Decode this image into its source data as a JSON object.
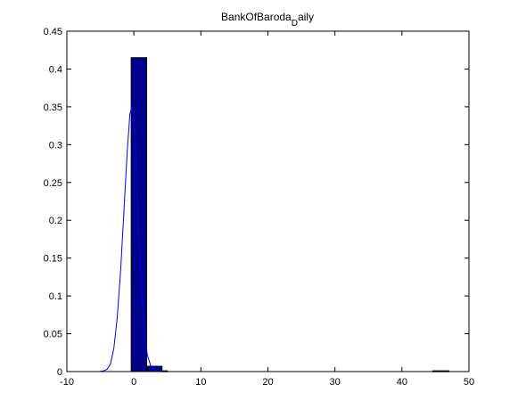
{
  "chart_data": {
    "type": "bar",
    "title_main": "BankOfBaroda",
    "title_sub": "D",
    "title_tail": "aily",
    "xlabel": "",
    "ylabel": "",
    "xlim": [
      -10,
      50
    ],
    "ylim": [
      0,
      0.45
    ],
    "x_ticks": [
      -10,
      0,
      10,
      20,
      30,
      40,
      50
    ],
    "x_tick_labels": [
      "-10",
      "0",
      "10",
      "20",
      "30",
      "40",
      "50"
    ],
    "y_ticks": [
      0,
      0.05,
      0.1,
      0.15,
      0.2,
      0.25,
      0.3,
      0.35,
      0.4,
      0.45
    ],
    "y_tick_labels": [
      "0",
      "0.05",
      "0.1",
      "0.15",
      "0.2",
      "0.25",
      "0.3",
      "0.35",
      "0.4",
      "0.45"
    ],
    "grid": false,
    "bar_color": "#00008b",
    "line_color": "#0000ff",
    "bars": [
      {
        "x0": -0.4,
        "x1": 1.9,
        "value": 0.415
      },
      {
        "x0": 1.9,
        "x1": 4.2,
        "value": 0.007
      },
      {
        "x0": 4.2,
        "x1": 5.0,
        "value": 0.001
      },
      {
        "x0": 44.6,
        "x1": 47.0,
        "value": 0.001
      }
    ],
    "density_curve": {
      "x": [
        -5,
        -4.5,
        -4,
        -3.5,
        -3,
        -2.5,
        -2,
        -1.5,
        -1,
        -0.6,
        -0.3,
        0,
        0.3,
        0.6,
        1,
        1.5,
        2,
        2.5,
        3,
        3.5,
        4,
        4.5,
        5
      ],
      "y": [
        0.0003,
        0.001,
        0.003,
        0.01,
        0.03,
        0.07,
        0.13,
        0.21,
        0.29,
        0.34,
        0.35,
        0.33,
        0.28,
        0.21,
        0.13,
        0.06,
        0.022,
        0.008,
        0.003,
        0.001,
        0.0004,
        0.0001,
        0
      ]
    }
  }
}
